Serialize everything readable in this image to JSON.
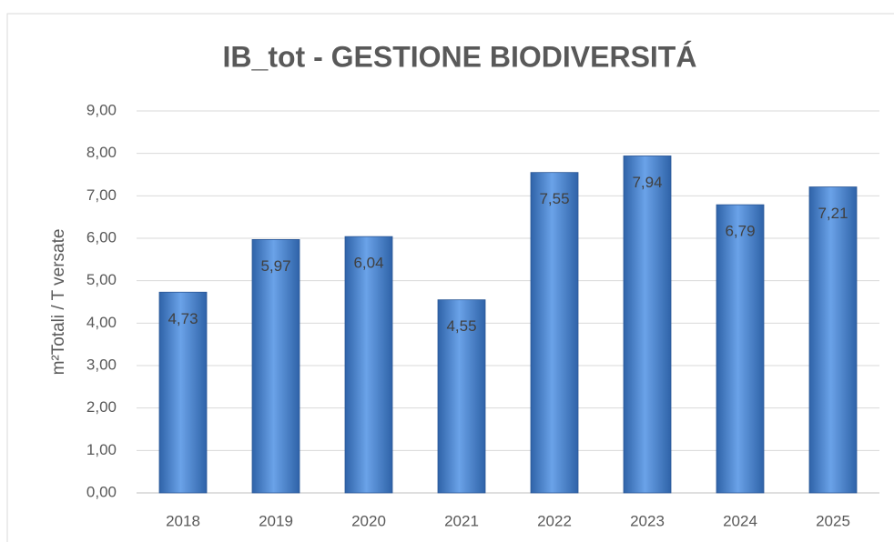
{
  "chart_data": {
    "type": "bar",
    "title": "IB_tot - GESTIONE BIODIVERSITÁ",
    "y_label": "m²Totali / T versate",
    "categories": [
      "2018",
      "2019",
      "2020",
      "2021",
      "2022",
      "2023",
      "2024",
      "2025"
    ],
    "values": [
      4.73,
      5.97,
      6.04,
      4.55,
      7.55,
      7.94,
      6.79,
      7.21
    ],
    "value_labels": [
      "4,73",
      "5,97",
      "6,04",
      "4,55",
      "7,55",
      "7,94",
      "6,79",
      "7,21"
    ],
    "color": "#4a86d4",
    "ylim": [
      0,
      9
    ],
    "yticks": [
      {
        "value": 0,
        "label": "0,00"
      },
      {
        "value": 1,
        "label": "1,00"
      },
      {
        "value": 2,
        "label": "2,00"
      },
      {
        "value": 3,
        "label": "3,00"
      },
      {
        "value": 4,
        "label": "4,00"
      },
      {
        "value": 5,
        "label": "5,00"
      },
      {
        "value": 6,
        "label": "6,00"
      },
      {
        "value": 7,
        "label": "7,00"
      },
      {
        "value": 8,
        "label": "8,00"
      },
      {
        "value": 9,
        "label": "9,00"
      }
    ],
    "grid": true
  }
}
